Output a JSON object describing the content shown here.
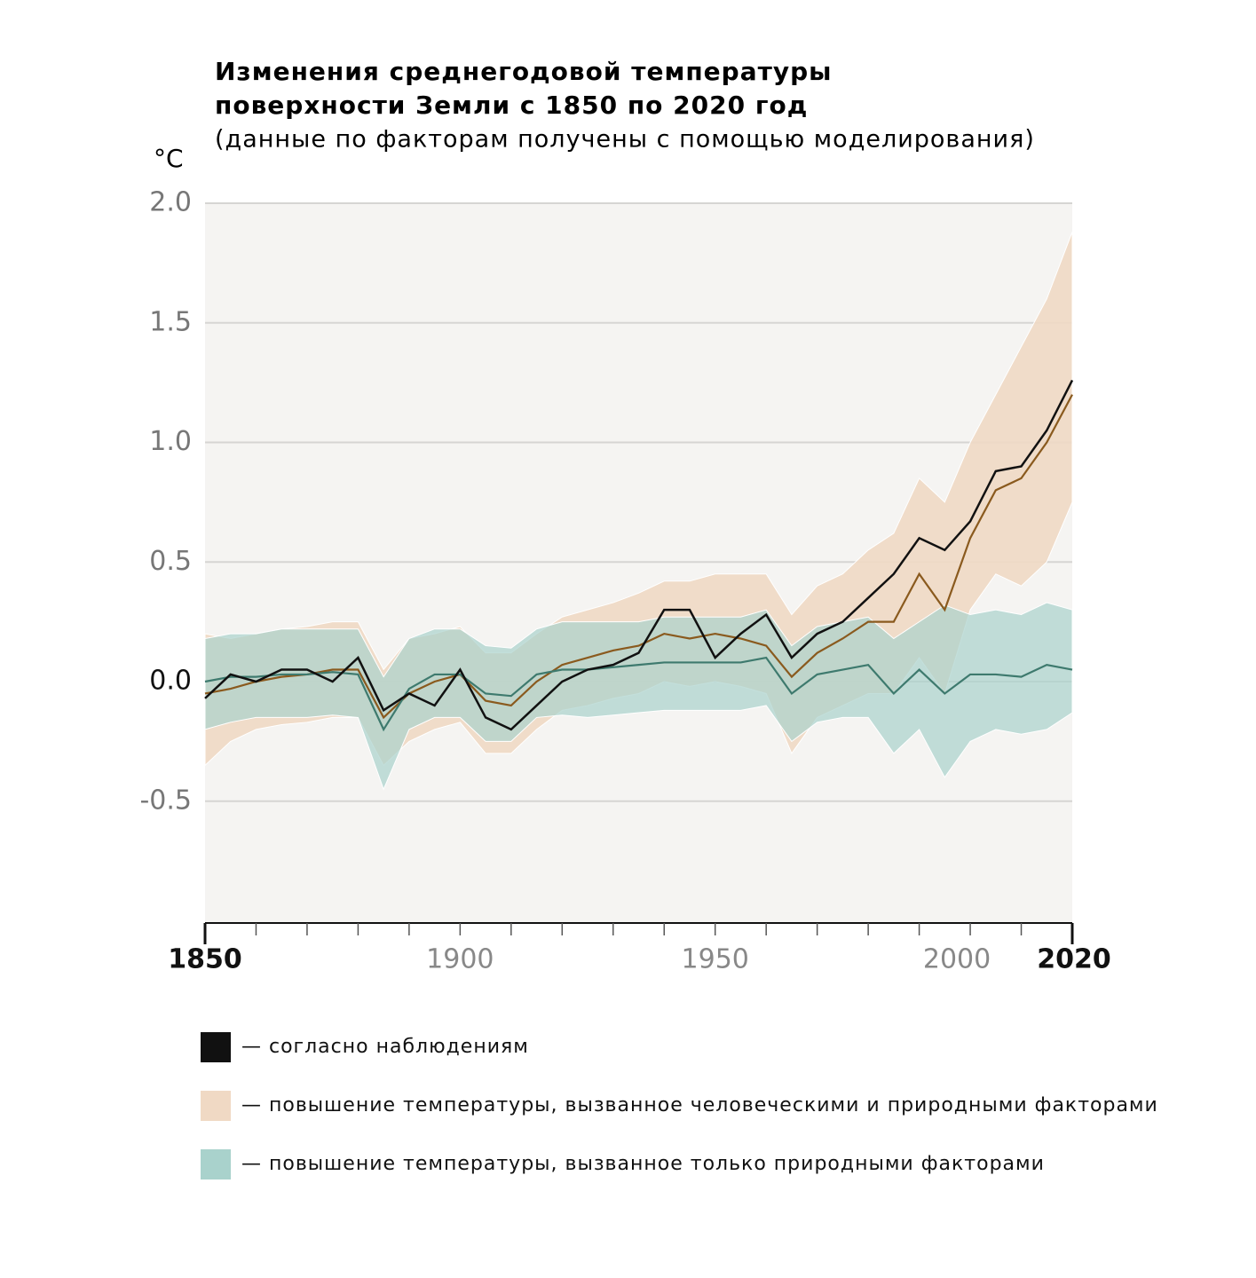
{
  "chart_data": {
    "type": "line",
    "title": [
      "Изменения среднегодовой температуры",
      "поверхности Земли с 1850 по 2020 год"
    ],
    "subtitle": "(данные по факторам получены с помощью моделирования)",
    "y_label": "°C",
    "x": [
      1850,
      1855,
      1860,
      1865,
      1870,
      1875,
      1880,
      1885,
      1890,
      1895,
      1900,
      1905,
      1910,
      1915,
      1920,
      1925,
      1930,
      1935,
      1940,
      1945,
      1950,
      1955,
      1960,
      1965,
      1970,
      1975,
      1980,
      1985,
      1990,
      1995,
      2000,
      2005,
      2010,
      2015,
      2020
    ],
    "xlim": [
      1850,
      2020
    ],
    "xticks": [
      1850,
      1900,
      1950,
      2000,
      2020
    ],
    "xminor": [
      1860,
      1870,
      1880,
      1890,
      1910,
      1920,
      1930,
      1940,
      1960,
      1970,
      1980,
      1990,
      2010
    ],
    "ylim": [
      -1,
      2
    ],
    "yticks": [
      {
        "value": 2,
        "label": "2.0"
      },
      1.5,
      {
        "value": 1,
        "label": "1.0"
      },
      0.5,
      {
        "value": 0,
        "label": "0.0"
      },
      -0.5
    ],
    "grid": true,
    "series": [
      {
        "name": "— повышение температуры, вызванное человеческими и природными факторами",
        "color": "#8a5a1e",
        "band_color": "#f0d9c4",
        "values": [
          -0.05,
          -0.03,
          0.0,
          0.02,
          0.03,
          0.05,
          0.05,
          -0.15,
          -0.05,
          0.0,
          0.03,
          -0.08,
          -0.1,
          0.0,
          0.07,
          0.1,
          0.13,
          0.15,
          0.2,
          0.18,
          0.2,
          0.18,
          0.15,
          0.02,
          0.12,
          0.18,
          0.25,
          0.25,
          0.45,
          0.3,
          0.6,
          0.8,
          0.85,
          1.0,
          1.2
        ],
        "low": [
          -0.35,
          -0.25,
          -0.2,
          -0.18,
          -0.17,
          -0.15,
          -0.15,
          -0.35,
          -0.25,
          -0.2,
          -0.17,
          -0.3,
          -0.3,
          -0.2,
          -0.12,
          -0.1,
          -0.07,
          -0.05,
          0.0,
          -0.02,
          0.0,
          -0.02,
          -0.05,
          -0.3,
          -0.15,
          -0.1,
          -0.05,
          -0.05,
          0.1,
          -0.05,
          0.3,
          0.45,
          0.4,
          0.5,
          0.75
        ],
        "high": [
          0.2,
          0.18,
          0.2,
          0.22,
          0.23,
          0.25,
          0.25,
          0.05,
          0.18,
          0.2,
          0.23,
          0.12,
          0.12,
          0.2,
          0.27,
          0.3,
          0.33,
          0.37,
          0.42,
          0.42,
          0.45,
          0.45,
          0.45,
          0.28,
          0.4,
          0.45,
          0.55,
          0.62,
          0.85,
          0.75,
          1.0,
          1.2,
          1.4,
          1.6,
          1.88
        ]
      },
      {
        "name": "— повышение температуры, вызванное только природными факторами",
        "color": "#3e7a6e",
        "band_color": "#a9d2cc",
        "values": [
          0.0,
          0.02,
          0.02,
          0.03,
          0.03,
          0.04,
          0.03,
          -0.2,
          -0.03,
          0.03,
          0.03,
          -0.05,
          -0.06,
          0.03,
          0.05,
          0.05,
          0.06,
          0.07,
          0.08,
          0.08,
          0.08,
          0.08,
          0.1,
          -0.05,
          0.03,
          0.05,
          0.07,
          -0.05,
          0.05,
          -0.05,
          0.03,
          0.03,
          0.02,
          0.07,
          0.05
        ],
        "low": [
          -0.2,
          -0.17,
          -0.15,
          -0.15,
          -0.15,
          -0.14,
          -0.15,
          -0.45,
          -0.2,
          -0.15,
          -0.15,
          -0.25,
          -0.25,
          -0.15,
          -0.14,
          -0.15,
          -0.14,
          -0.13,
          -0.12,
          -0.12,
          -0.12,
          -0.12,
          -0.1,
          -0.25,
          -0.17,
          -0.15,
          -0.15,
          -0.3,
          -0.2,
          -0.4,
          -0.25,
          -0.2,
          -0.22,
          -0.2,
          -0.13
        ],
        "high": [
          0.18,
          0.2,
          0.2,
          0.22,
          0.22,
          0.22,
          0.22,
          0.02,
          0.18,
          0.22,
          0.22,
          0.15,
          0.14,
          0.22,
          0.25,
          0.25,
          0.25,
          0.25,
          0.27,
          0.27,
          0.27,
          0.27,
          0.3,
          0.15,
          0.23,
          0.25,
          0.27,
          0.18,
          0.25,
          0.32,
          0.28,
          0.3,
          0.28,
          0.33,
          0.3
        ]
      },
      {
        "name": "— согласно наблюдениям",
        "color": "#111111",
        "values": [
          -0.07,
          0.03,
          0.0,
          0.05,
          0.05,
          0.0,
          0.1,
          -0.12,
          -0.05,
          -0.1,
          0.05,
          -0.15,
          -0.2,
          -0.1,
          0.0,
          0.05,
          0.07,
          0.12,
          0.3,
          0.3,
          0.1,
          0.2,
          0.28,
          0.1,
          0.2,
          0.25,
          0.35,
          0.45,
          0.6,
          0.55,
          0.67,
          0.88,
          0.9,
          1.05,
          1.26
        ]
      }
    ],
    "legend_order": [
      2,
      0,
      1
    ]
  }
}
